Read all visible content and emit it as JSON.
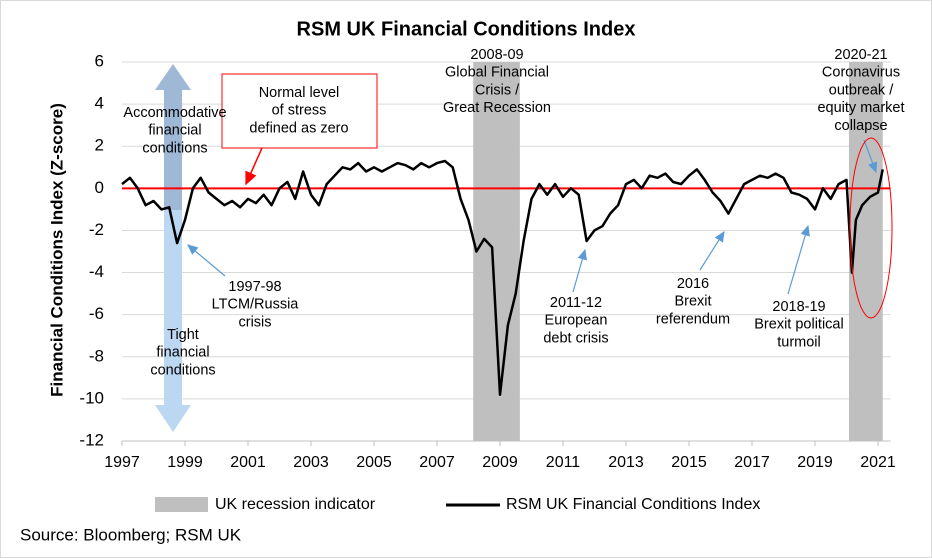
{
  "chart_data": {
    "type": "line",
    "title": "RSM UK Financial Conditions Index",
    "y_axis_label": "Financial Conditions Index (Z-score)",
    "source": "Source: Bloomberg; RSM UK",
    "x": [
      1997,
      1997.25,
      1997.5,
      1997.75,
      1998,
      1998.25,
      1998.5,
      1998.75,
      1999,
      1999.25,
      1999.5,
      1999.75,
      2000,
      2000.25,
      2000.5,
      2000.75,
      2001,
      2001.25,
      2001.5,
      2001.75,
      2002,
      2002.25,
      2002.5,
      2002.75,
      2003,
      2003.25,
      2003.5,
      2003.75,
      2004,
      2004.25,
      2004.5,
      2004.75,
      2005,
      2005.25,
      2005.5,
      2005.75,
      2006,
      2006.25,
      2006.5,
      2006.75,
      2007,
      2007.25,
      2007.5,
      2007.75,
      2008,
      2008.25,
      2008.5,
      2008.75,
      2009,
      2009.25,
      2009.5,
      2009.75,
      2010,
      2010.25,
      2010.5,
      2010.75,
      2011,
      2011.25,
      2011.5,
      2011.75,
      2012,
      2012.25,
      2012.5,
      2012.75,
      2013,
      2013.25,
      2013.5,
      2013.75,
      2014,
      2014.25,
      2014.5,
      2014.75,
      2015,
      2015.25,
      2015.5,
      2015.75,
      2016,
      2016.25,
      2016.5,
      2016.75,
      2017,
      2017.25,
      2017.5,
      2017.75,
      2018,
      2018.25,
      2018.5,
      2018.75,
      2019,
      2019.25,
      2019.5,
      2019.75,
      2020,
      2020.17,
      2020.3,
      2020.5,
      2020.75,
      2021,
      2021.15
    ],
    "series": [
      {
        "name": "RSM UK Financial Conditions Index",
        "color": "#000000",
        "values": [
          0.2,
          0.5,
          0.0,
          -0.8,
          -0.6,
          -1.0,
          -0.9,
          -2.6,
          -1.5,
          0.0,
          0.5,
          -0.2,
          -0.5,
          -0.8,
          -0.6,
          -0.9,
          -0.5,
          -0.7,
          -0.3,
          -0.8,
          0.0,
          0.3,
          -0.5,
          0.8,
          -0.3,
          -0.8,
          0.2,
          0.6,
          1.0,
          0.9,
          1.2,
          0.8,
          1.0,
          0.8,
          1.0,
          1.2,
          1.1,
          0.9,
          1.2,
          1.0,
          1.2,
          1.3,
          1.0,
          -0.5,
          -1.5,
          -3.0,
          -2.4,
          -2.8,
          -9.8,
          -6.5,
          -5.0,
          -2.5,
          -0.5,
          0.2,
          -0.3,
          0.2,
          -0.4,
          0.0,
          -0.3,
          -2.5,
          -2.0,
          -1.8,
          -1.2,
          -0.8,
          0.2,
          0.4,
          0.0,
          0.6,
          0.5,
          0.7,
          0.3,
          0.2,
          0.6,
          0.9,
          0.4,
          -0.2,
          -0.6,
          -1.2,
          -0.5,
          0.2,
          0.4,
          0.6,
          0.5,
          0.7,
          0.5,
          -0.2,
          -0.3,
          -0.5,
          -1.0,
          0.0,
          -0.5,
          0.2,
          0.4,
          -4.0,
          -1.5,
          -0.8,
          -0.4,
          -0.2,
          0.9
        ]
      }
    ],
    "recession": {
      "name": "UK recession indicator",
      "color": "#bfbfbf",
      "periods": [
        [
          2008.15,
          2009.63
        ],
        [
          2020.08,
          2021.15
        ]
      ]
    },
    "reference_line": {
      "value": 0,
      "color": "#ff0000"
    },
    "xlim": [
      1997,
      2021.4
    ],
    "xticks": [
      1997,
      1999,
      2001,
      2003,
      2005,
      2007,
      2009,
      2011,
      2013,
      2015,
      2017,
      2019,
      2021
    ],
    "ylim": [
      -12,
      6
    ],
    "yticks": [
      -12,
      -10,
      -8,
      -6,
      -4,
      -2,
      0,
      2,
      4,
      6
    ],
    "grid": true,
    "annotations": [
      [
        "Accommodative",
        "financial",
        "conditions"
      ],
      [
        "Tight",
        "financial",
        "conditions"
      ],
      [
        "Normal level",
        "of stress",
        "defined as zero"
      ],
      [
        "2008-09",
        "Global Financial",
        "Crisis /",
        "Great Recession"
      ],
      [
        "1997-98",
        "LTCM/Russia",
        "crisis"
      ],
      [
        "2011-12",
        "European",
        "debt crisis"
      ],
      [
        "2016",
        "Brexit",
        "referendum"
      ],
      [
        "2018-19",
        "Brexit political",
        "turmoil"
      ],
      [
        "2020-21",
        "Coronavirus",
        "outbreak /",
        "equity market",
        "collapse"
      ]
    ]
  }
}
